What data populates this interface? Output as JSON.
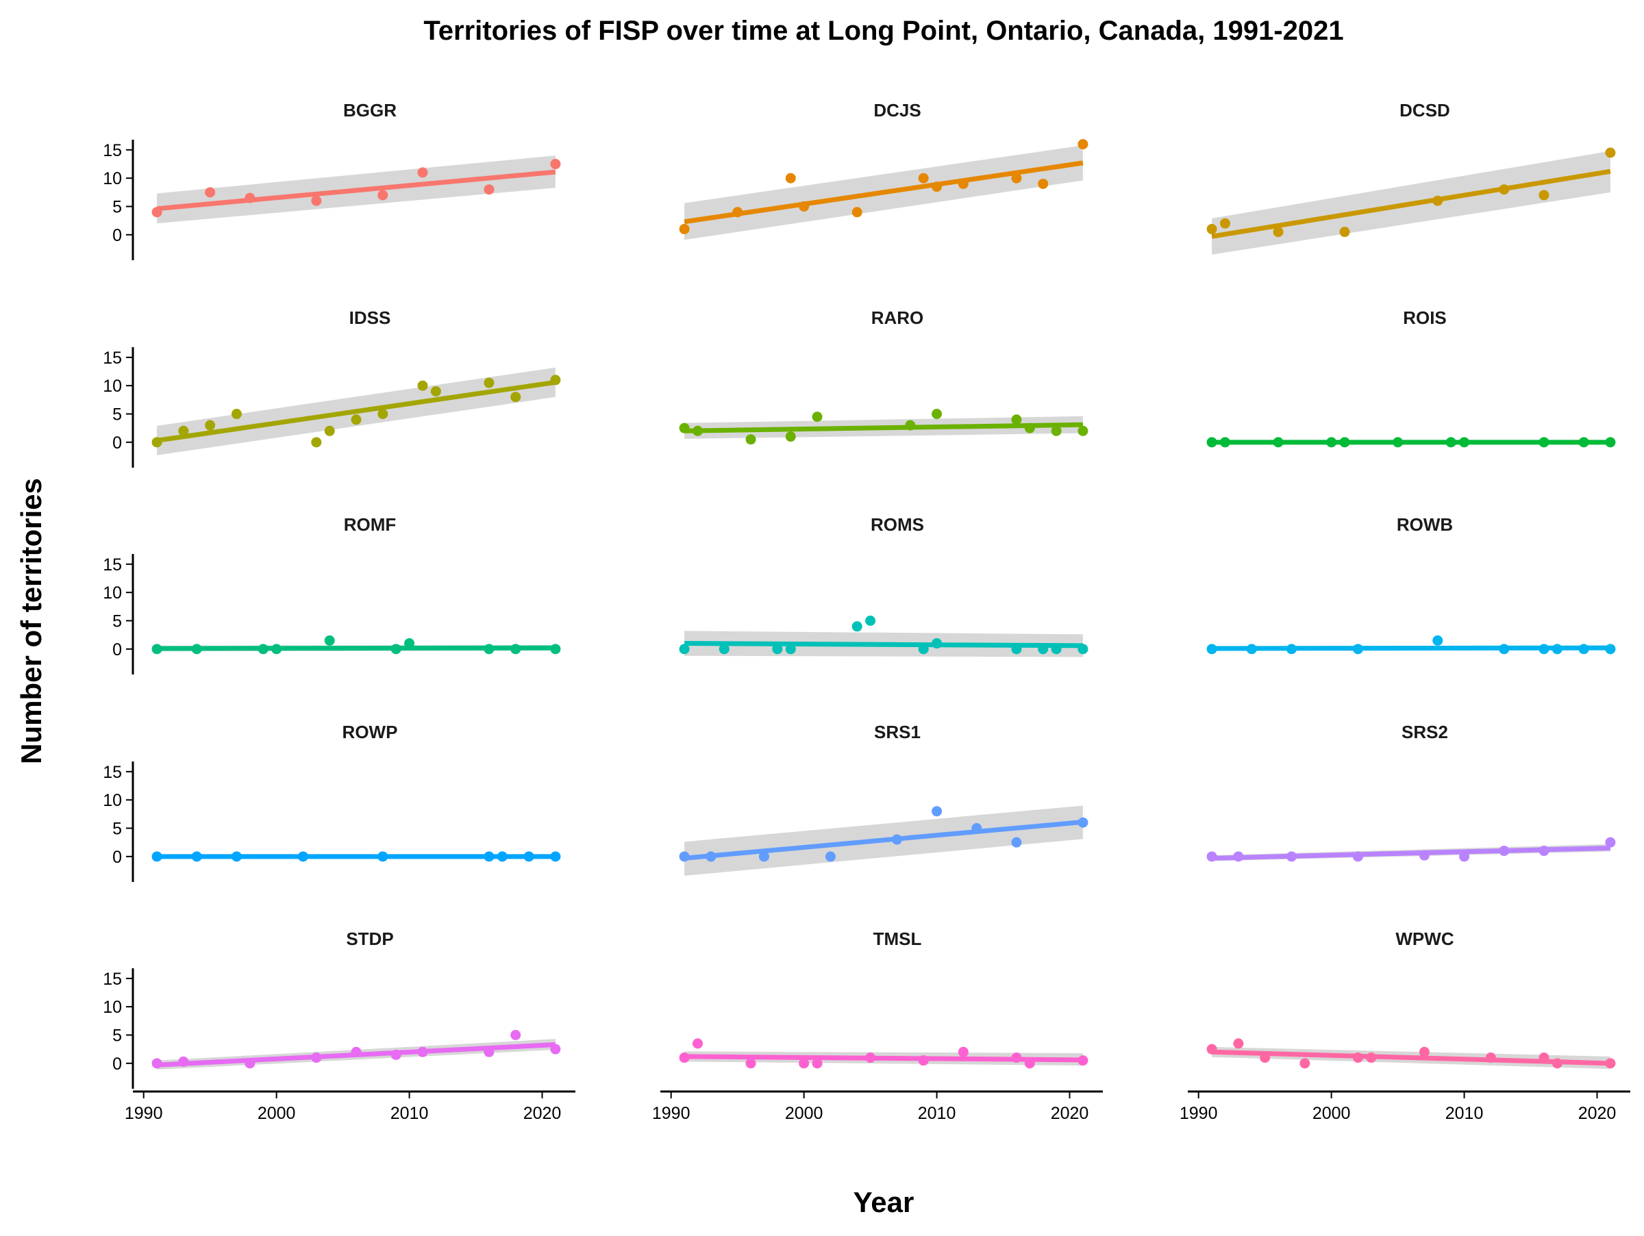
{
  "chart_data": {
    "type": "scatter",
    "title": "Territories of FISP over time at Long Point, Ontario, Canada, 1991-2021",
    "xlabel": "Year",
    "ylabel": "Number of territories",
    "xlim": [
      1989.5,
      2022.5
    ],
    "ylim": [
      -4.5,
      16.8
    ],
    "x_ticks": [
      1990,
      2000,
      2010,
      2020
    ],
    "y_ticks": [
      0,
      5,
      10,
      15
    ],
    "x_tick_labels": [
      "1990",
      "2000",
      "2010",
      "2020"
    ],
    "y_tick_labels": [
      "0",
      "5",
      "10",
      "15"
    ],
    "grid": false,
    "legend": "none",
    "overlay": "linear trend line with grey confidence band",
    "facets": [
      {
        "name": "BGGR",
        "color": "#F8766D",
        "x": [
          1991,
          1995,
          1998,
          2003,
          2008,
          2011,
          2016,
          2021
        ],
        "y": [
          4,
          7.5,
          6.5,
          6,
          7,
          11,
          8,
          12.5
        ],
        "fit": [
          4.6,
          11.1
        ],
        "band_low": [
          2.0,
          8.3
        ],
        "band_high": [
          7.3,
          14.0
        ]
      },
      {
        "name": "DCJS",
        "color": "#E58700",
        "x": [
          1991,
          1995,
          1999,
          2000,
          2004,
          2009,
          2010,
          2012,
          2016,
          2018,
          2021
        ],
        "y": [
          1,
          4,
          10,
          5,
          4,
          10,
          8.5,
          9,
          10,
          9,
          16
        ],
        "fit": [
          2.3,
          12.7
        ],
        "band_low": [
          -0.9,
          9.6
        ],
        "band_high": [
          5.6,
          15.8
        ]
      },
      {
        "name": "DCSD",
        "color": "#C99800",
        "x": [
          1991,
          1992,
          1996,
          2001,
          2008,
          2013,
          2016,
          2021
        ],
        "y": [
          1,
          2,
          0.5,
          0.5,
          6,
          8,
          7,
          14.5
        ],
        "fit": [
          -0.3,
          11.2
        ],
        "band_low": [
          -3.5,
          7.5
        ],
        "band_high": [
          2.9,
          14.8
        ]
      },
      {
        "name": "IDSS",
        "color": "#A3A500",
        "x": [
          1991,
          1993,
          1995,
          1997,
          2003,
          2004,
          2006,
          2008,
          2011,
          2012,
          2016,
          2018,
          2021
        ],
        "y": [
          0,
          2,
          3,
          5,
          0,
          2,
          4,
          5,
          10,
          9,
          10.5,
          8,
          11
        ],
        "fit": [
          0.3,
          10.6
        ],
        "band_low": [
          -2.3,
          8.0
        ],
        "band_high": [
          2.9,
          13.2
        ]
      },
      {
        "name": "RARO",
        "color": "#6BB100",
        "x": [
          1991,
          1992,
          1996,
          1999,
          2001,
          2008,
          2010,
          2016,
          2017,
          2019,
          2021
        ],
        "y": [
          2.5,
          2,
          0.5,
          1,
          4.5,
          3,
          5,
          4,
          2.5,
          2,
          2
        ],
        "fit": [
          2.0,
          3.1
        ],
        "band_low": [
          0.6,
          1.6
        ],
        "band_high": [
          3.4,
          4.6
        ]
      },
      {
        "name": "ROIS",
        "color": "#00BA38",
        "x": [
          1991,
          1992,
          1996,
          2000,
          2001,
          2005,
          2009,
          2010,
          2016,
          2019,
          2021
        ],
        "y": [
          0,
          0,
          0,
          0,
          0,
          0,
          0,
          0,
          0,
          0,
          0
        ],
        "fit": [
          0,
          0
        ],
        "band_low": [
          0,
          0
        ],
        "band_high": [
          0,
          0
        ]
      },
      {
        "name": "ROMF",
        "color": "#00BF7D",
        "x": [
          1991,
          1994,
          1999,
          2000,
          2004,
          2009,
          2010,
          2016,
          2018,
          2021
        ],
        "y": [
          0,
          0,
          0,
          0,
          1.5,
          0,
          1,
          0,
          0,
          0
        ],
        "fit": [
          0.1,
          0.2
        ],
        "band_low": [
          -0.4,
          -0.3
        ],
        "band_high": [
          0.6,
          0.7
        ]
      },
      {
        "name": "ROMS",
        "color": "#00C0B8",
        "x": [
          1991,
          1994,
          1998,
          1999,
          2004,
          2005,
          2009,
          2010,
          2016,
          2018,
          2019,
          2021
        ],
        "y": [
          0,
          0,
          0,
          0,
          4,
          5,
          0,
          1,
          0,
          0,
          0,
          0
        ],
        "fit": [
          1.0,
          0.6
        ],
        "band_low": [
          -1.2,
          -1.4
        ],
        "band_high": [
          3.2,
          2.6
        ]
      },
      {
        "name": "ROWB",
        "color": "#00B4EF",
        "x": [
          1991,
          1994,
          1997,
          2002,
          2008,
          2013,
          2016,
          2017,
          2019,
          2021
        ],
        "y": [
          0,
          0,
          0,
          0,
          1.5,
          0,
          0,
          0,
          0,
          0
        ],
        "fit": [
          0.1,
          0.2
        ],
        "band_low": [
          -0.3,
          -0.2
        ],
        "band_high": [
          0.5,
          0.6
        ]
      },
      {
        "name": "ROWP",
        "color": "#00A5FF",
        "x": [
          1991,
          1994,
          1997,
          2002,
          2008,
          2016,
          2017,
          2019,
          2021
        ],
        "y": [
          0,
          0,
          0,
          0,
          0,
          0,
          0,
          0,
          0
        ],
        "fit": [
          0,
          0
        ],
        "band_low": [
          0,
          0
        ],
        "band_high": [
          0,
          0
        ]
      },
      {
        "name": "SRS1",
        "color": "#619CFF",
        "x": [
          1991,
          1993,
          1997,
          2002,
          2007,
          2010,
          2013,
          2016,
          2021
        ],
        "y": [
          0,
          0,
          0,
          0,
          3,
          8,
          5,
          2.5,
          6
        ],
        "fit": [
          -0.3,
          6.1
        ],
        "band_low": [
          -3.4,
          3.1
        ],
        "band_high": [
          2.6,
          9.0
        ]
      },
      {
        "name": "SRS2",
        "color": "#B983FF",
        "x": [
          1991,
          1993,
          1997,
          2002,
          2007,
          2010,
          2013,
          2016,
          2021
        ],
        "y": [
          0,
          0,
          0,
          0,
          0.2,
          0,
          1,
          1,
          2.5
        ],
        "fit": [
          -0.3,
          1.5
        ],
        "band_low": [
          -0.8,
          0.9
        ],
        "band_high": [
          0.2,
          2.2
        ]
      },
      {
        "name": "STDP",
        "color": "#E76BF3",
        "x": [
          1991,
          1993,
          1998,
          2003,
          2006,
          2009,
          2011,
          2016,
          2018,
          2021
        ],
        "y": [
          0,
          0.3,
          0,
          1,
          2,
          1.5,
          2,
          2,
          5,
          2.5
        ],
        "fit": [
          -0.3,
          3.3
        ],
        "band_low": [
          -1.1,
          2.4
        ],
        "band_high": [
          0.5,
          4.3
        ]
      },
      {
        "name": "TMSL",
        "color": "#FD61D1",
        "x": [
          1991,
          1992,
          1996,
          2000,
          2001,
          2005,
          2009,
          2012,
          2016,
          2017,
          2021
        ],
        "y": [
          1,
          3.5,
          0,
          0,
          0,
          1,
          0.5,
          2,
          1,
          0,
          0.5
        ],
        "fit": [
          1.2,
          0.6
        ],
        "band_low": [
          0.3,
          -0.4
        ],
        "band_high": [
          2.1,
          1.8
        ]
      },
      {
        "name": "WPWC",
        "color": "#FF67A4",
        "x": [
          1991,
          1993,
          1995,
          1998,
          2002,
          2003,
          2007,
          2012,
          2016,
          2017,
          2021
        ],
        "y": [
          2.5,
          3.5,
          1,
          0,
          1,
          1,
          2,
          1,
          1,
          0,
          0
        ],
        "fit": [
          2.0,
          0.0
        ],
        "band_low": [
          1.1,
          -1.0
        ],
        "band_high": [
          2.9,
          1.2
        ]
      }
    ]
  }
}
